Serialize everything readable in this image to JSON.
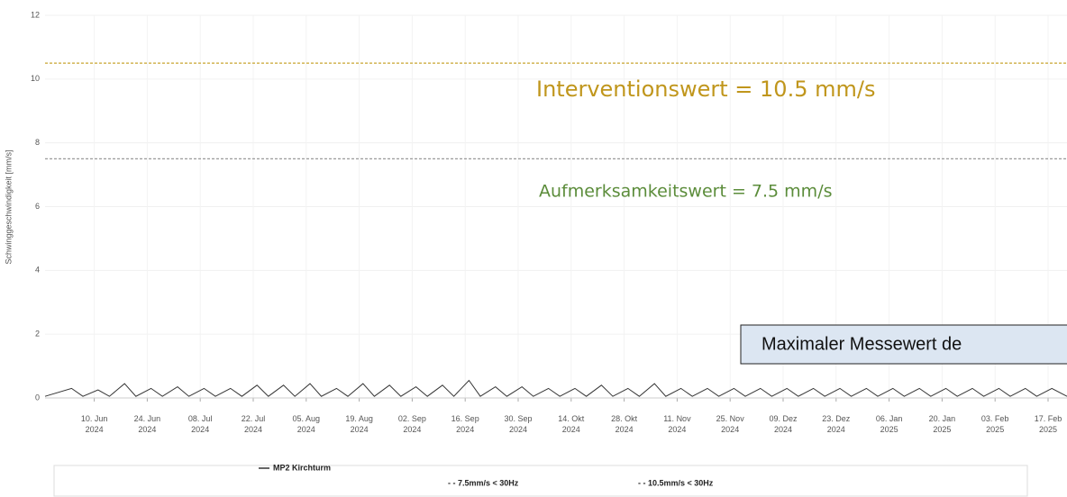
{
  "chart_data": {
    "type": "line",
    "y_label": "Schwinggeschwindigkeit [mm/s]",
    "xlim": [
      "2024-05-28",
      "2025-02-22"
    ],
    "ylim": [
      0,
      12
    ],
    "yticks": [
      0,
      2,
      4,
      6,
      8,
      10,
      12
    ],
    "xticks": [
      {
        "value": "2024-06-10",
        "label": "10. Jun 2024"
      },
      {
        "value": "2024-06-24",
        "label": "24. Jun 2024"
      },
      {
        "value": "2024-07-08",
        "label": "08. Jul 2024"
      },
      {
        "value": "2024-07-22",
        "label": "22. Jul 2024"
      },
      {
        "value": "2024-08-05",
        "label": "05. Aug 2024"
      },
      {
        "value": "2024-08-19",
        "label": "19. Aug 2024"
      },
      {
        "value": "2024-09-02",
        "label": "02. Sep 2024"
      },
      {
        "value": "2024-09-16",
        "label": "16. Sep 2024"
      },
      {
        "value": "2024-09-30",
        "label": "30. Sep 2024"
      },
      {
        "value": "2024-10-14",
        "label": "14. Okt 2024"
      },
      {
        "value": "2024-10-28",
        "label": "28. Okt 2024"
      },
      {
        "value": "2024-11-11",
        "label": "11. Nov 2024"
      },
      {
        "value": "2024-11-25",
        "label": "25. Nov 2024"
      },
      {
        "value": "2024-12-09",
        "label": "09. Dez 2024"
      },
      {
        "value": "2024-12-23",
        "label": "23. Dez 2024"
      },
      {
        "value": "2025-01-06",
        "label": "06. Jan 2025"
      },
      {
        "value": "2025-01-20",
        "label": "20. Jan 2025"
      },
      {
        "value": "2025-02-03",
        "label": "03. Feb 2025"
      },
      {
        "value": "2025-02-17",
        "label": "17. Feb 2025"
      }
    ],
    "grid": true,
    "series": [
      {
        "name": "MP2 Kirchturm",
        "color": "#333333",
        "dash": false,
        "x": [
          "2024-05-28",
          "2024-06-04",
          "2024-06-07",
          "2024-06-11",
          "2024-06-14",
          "2024-06-18",
          "2024-06-21",
          "2024-06-25",
          "2024-06-28",
          "2024-07-02",
          "2024-07-05",
          "2024-07-09",
          "2024-07-12",
          "2024-07-16",
          "2024-07-19",
          "2024-07-23",
          "2024-07-26",
          "2024-07-30",
          "2024-08-02",
          "2024-08-06",
          "2024-08-09",
          "2024-08-13",
          "2024-08-16",
          "2024-08-20",
          "2024-08-23",
          "2024-08-27",
          "2024-08-30",
          "2024-09-03",
          "2024-09-06",
          "2024-09-10",
          "2024-09-13",
          "2024-09-17",
          "2024-09-20",
          "2024-09-24",
          "2024-09-27",
          "2024-10-01",
          "2024-10-04",
          "2024-10-08",
          "2024-10-11",
          "2024-10-15",
          "2024-10-18",
          "2024-10-22",
          "2024-10-25",
          "2024-10-29",
          "2024-11-01",
          "2024-11-05",
          "2024-11-08",
          "2024-11-12",
          "2024-11-15",
          "2024-11-19",
          "2024-11-22",
          "2024-11-26",
          "2024-11-29",
          "2024-12-03",
          "2024-12-06",
          "2024-12-10",
          "2024-12-13",
          "2024-12-17",
          "2024-12-20",
          "2024-12-24",
          "2024-12-27",
          "2024-12-31",
          "2025-01-03",
          "2025-01-07",
          "2025-01-10",
          "2025-01-14",
          "2025-01-17",
          "2025-01-21",
          "2025-01-24",
          "2025-01-28",
          "2025-01-31",
          "2025-02-04",
          "2025-02-07",
          "2025-02-11",
          "2025-02-14",
          "2025-02-18",
          "2025-02-22"
        ],
        "values": [
          0.05,
          0.3,
          0.05,
          0.25,
          0.05,
          0.45,
          0.05,
          0.3,
          0.05,
          0.35,
          0.05,
          0.3,
          0.05,
          0.3,
          0.05,
          0.4,
          0.05,
          0.4,
          0.05,
          0.45,
          0.05,
          0.3,
          0.05,
          0.45,
          0.05,
          0.4,
          0.05,
          0.35,
          0.05,
          0.4,
          0.05,
          0.55,
          0.05,
          0.35,
          0.05,
          0.35,
          0.05,
          0.3,
          0.05,
          0.3,
          0.05,
          0.4,
          0.05,
          0.3,
          0.05,
          0.45,
          0.05,
          0.3,
          0.05,
          0.3,
          0.05,
          0.3,
          0.05,
          0.3,
          0.05,
          0.3,
          0.05,
          0.3,
          0.05,
          0.3,
          0.05,
          0.3,
          0.05,
          0.3,
          0.05,
          0.3,
          0.05,
          0.3,
          0.05,
          0.3,
          0.05,
          0.3,
          0.05,
          0.3,
          0.05,
          0.3,
          0.05
        ]
      },
      {
        "name": "- - 7.5mm/s < 30Hz",
        "color": "#999999",
        "dash": true,
        "x": [
          "2024-05-28",
          "2025-02-22"
        ],
        "values": [
          7.5,
          7.5
        ]
      },
      {
        "name": "- - 10.5mm/s < 30Hz",
        "color": "#c8a530",
        "dash": true,
        "x": [
          "2024-05-28",
          "2025-02-22"
        ],
        "values": [
          10.5,
          10.5
        ]
      }
    ],
    "annotations": [
      {
        "text": "Interventionswert = 10.5 mm/s",
        "color": "#c0961c"
      },
      {
        "text": "Aufmerksamkeitswert = 7.5 mm/s",
        "color": "#5b8c3a"
      },
      {
        "text": "Maximaler Messewert de"
      }
    ]
  }
}
